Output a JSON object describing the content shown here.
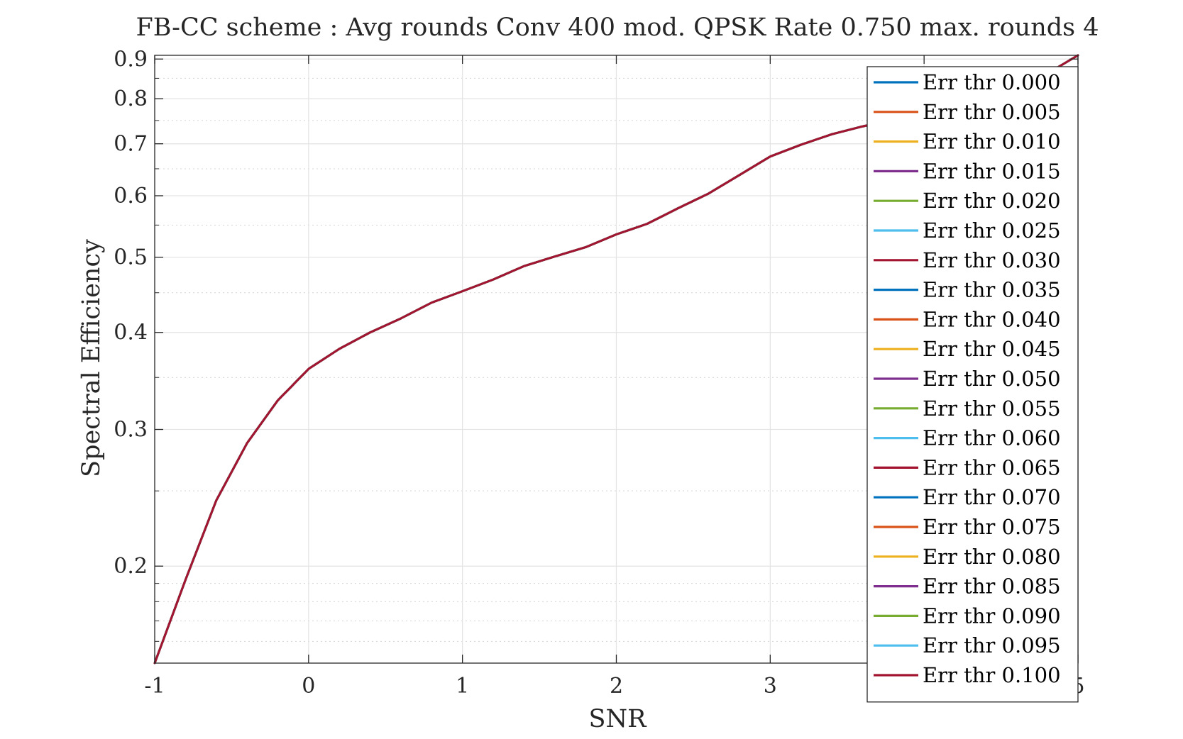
{
  "chart_data": {
    "type": "line",
    "title": "FB-CC scheme : Avg rounds Conv 400 mod. QPSK Rate 0.750 max. rounds 4",
    "xlabel": "SNR",
    "ylabel": "Spectral Efficiency",
    "xlim": [
      -1,
      5
    ],
    "ylim": [
      0.15,
      0.91
    ],
    "yscale": "log",
    "grid": true,
    "minor_grid": true,
    "legend_position": "top-right",
    "x_ticks": [
      -1,
      0,
      1,
      2,
      3,
      4,
      5
    ],
    "x_tick_labels": [
      "-1",
      "0",
      "1",
      "2",
      "3",
      "4",
      "5"
    ],
    "y_ticks": [
      0.2,
      0.3,
      0.4,
      0.5,
      0.6,
      0.7,
      0.8,
      0.9
    ],
    "y_tick_labels": [
      "0.2",
      "0.3",
      "0.4",
      "0.5",
      "0.6",
      "0.7",
      "0.8",
      "0.9"
    ],
    "y_minor_ticks": [
      0.15,
      0.16,
      0.17,
      0.18,
      0.19,
      0.25,
      0.35,
      0.45,
      0.55,
      0.65,
      0.75,
      0.85
    ],
    "x": [
      -1.0,
      -0.8,
      -0.6,
      -0.4,
      -0.2,
      0.0,
      0.2,
      0.4,
      0.6,
      0.8,
      1.0,
      1.2,
      1.4,
      1.6,
      1.8,
      2.0,
      2.2,
      2.4,
      2.6,
      2.8,
      3.0,
      3.2,
      3.4,
      3.6,
      3.8,
      4.0,
      4.2,
      4.4,
      4.6,
      4.8,
      5.0
    ],
    "series": [
      {
        "name": "Err thr 0.000",
        "color": "#0072BD",
        "values": [
          0.15,
          0.192,
          0.243,
          0.288,
          0.327,
          0.359,
          0.381,
          0.4,
          0.417,
          0.437,
          0.452,
          0.468,
          0.487,
          0.501,
          0.515,
          0.535,
          0.552,
          0.578,
          0.604,
          0.638,
          0.674,
          0.698,
          0.72,
          0.737,
          0.752,
          0.768,
          0.784,
          0.802,
          0.828,
          0.862,
          0.91
        ]
      },
      {
        "name": "Err thr 0.005",
        "color": "#D95319",
        "values": [
          0.15,
          0.192,
          0.243,
          0.288,
          0.327,
          0.359,
          0.381,
          0.4,
          0.417,
          0.437,
          0.452,
          0.468,
          0.487,
          0.501,
          0.515,
          0.535,
          0.552,
          0.578,
          0.604,
          0.638,
          0.674,
          0.698,
          0.72,
          0.737,
          0.752,
          0.768,
          0.784,
          0.802,
          0.828,
          0.862,
          0.91
        ]
      },
      {
        "name": "Err thr 0.010",
        "color": "#EDB120",
        "values": [
          0.15,
          0.192,
          0.243,
          0.288,
          0.327,
          0.359,
          0.381,
          0.4,
          0.417,
          0.437,
          0.452,
          0.468,
          0.487,
          0.501,
          0.515,
          0.535,
          0.552,
          0.578,
          0.604,
          0.638,
          0.674,
          0.698,
          0.72,
          0.737,
          0.752,
          0.768,
          0.784,
          0.802,
          0.828,
          0.862,
          0.91
        ]
      },
      {
        "name": "Err thr 0.015",
        "color": "#7E2F8E",
        "values": [
          0.15,
          0.192,
          0.243,
          0.288,
          0.327,
          0.359,
          0.381,
          0.4,
          0.417,
          0.437,
          0.452,
          0.468,
          0.487,
          0.501,
          0.515,
          0.535,
          0.552,
          0.578,
          0.604,
          0.638,
          0.674,
          0.698,
          0.72,
          0.737,
          0.752,
          0.768,
          0.784,
          0.802,
          0.828,
          0.862,
          0.91
        ]
      },
      {
        "name": "Err thr 0.020",
        "color": "#77AC30",
        "values": [
          0.15,
          0.192,
          0.243,
          0.288,
          0.327,
          0.359,
          0.381,
          0.4,
          0.417,
          0.437,
          0.452,
          0.468,
          0.487,
          0.501,
          0.515,
          0.535,
          0.552,
          0.578,
          0.604,
          0.638,
          0.674,
          0.698,
          0.72,
          0.737,
          0.752,
          0.768,
          0.784,
          0.802,
          0.828,
          0.862,
          0.91
        ]
      },
      {
        "name": "Err thr 0.025",
        "color": "#4DBEEE",
        "values": [
          0.15,
          0.192,
          0.243,
          0.288,
          0.327,
          0.359,
          0.381,
          0.4,
          0.417,
          0.437,
          0.452,
          0.468,
          0.487,
          0.501,
          0.515,
          0.535,
          0.552,
          0.578,
          0.604,
          0.638,
          0.674,
          0.698,
          0.72,
          0.737,
          0.752,
          0.768,
          0.784,
          0.802,
          0.828,
          0.862,
          0.91
        ]
      },
      {
        "name": "Err thr 0.030",
        "color": "#A2142F",
        "values": [
          0.15,
          0.192,
          0.243,
          0.288,
          0.327,
          0.359,
          0.381,
          0.4,
          0.417,
          0.437,
          0.452,
          0.468,
          0.487,
          0.501,
          0.515,
          0.535,
          0.552,
          0.578,
          0.604,
          0.638,
          0.674,
          0.698,
          0.72,
          0.737,
          0.752,
          0.768,
          0.784,
          0.802,
          0.828,
          0.862,
          0.91
        ]
      },
      {
        "name": "Err thr 0.035",
        "color": "#0072BD",
        "values": [
          0.15,
          0.192,
          0.243,
          0.288,
          0.327,
          0.359,
          0.381,
          0.4,
          0.417,
          0.437,
          0.452,
          0.468,
          0.487,
          0.501,
          0.515,
          0.535,
          0.552,
          0.578,
          0.604,
          0.638,
          0.674,
          0.698,
          0.72,
          0.737,
          0.752,
          0.768,
          0.784,
          0.802,
          0.828,
          0.862,
          0.91
        ]
      },
      {
        "name": "Err thr 0.040",
        "color": "#D95319",
        "values": [
          0.15,
          0.192,
          0.243,
          0.288,
          0.327,
          0.359,
          0.381,
          0.4,
          0.417,
          0.437,
          0.452,
          0.468,
          0.487,
          0.501,
          0.515,
          0.535,
          0.552,
          0.578,
          0.604,
          0.638,
          0.674,
          0.698,
          0.72,
          0.737,
          0.752,
          0.768,
          0.784,
          0.802,
          0.828,
          0.862,
          0.91
        ]
      },
      {
        "name": "Err thr 0.045",
        "color": "#EDB120",
        "values": [
          0.15,
          0.192,
          0.243,
          0.288,
          0.327,
          0.359,
          0.381,
          0.4,
          0.417,
          0.437,
          0.452,
          0.468,
          0.487,
          0.501,
          0.515,
          0.535,
          0.552,
          0.578,
          0.604,
          0.638,
          0.674,
          0.698,
          0.72,
          0.737,
          0.752,
          0.768,
          0.784,
          0.802,
          0.828,
          0.862,
          0.91
        ]
      },
      {
        "name": "Err thr 0.050",
        "color": "#7E2F8E",
        "values": [
          0.15,
          0.192,
          0.243,
          0.288,
          0.327,
          0.359,
          0.381,
          0.4,
          0.417,
          0.437,
          0.452,
          0.468,
          0.487,
          0.501,
          0.515,
          0.535,
          0.552,
          0.578,
          0.604,
          0.638,
          0.674,
          0.698,
          0.72,
          0.737,
          0.752,
          0.768,
          0.784,
          0.802,
          0.828,
          0.862,
          0.91
        ]
      },
      {
        "name": "Err thr 0.055",
        "color": "#77AC30",
        "values": [
          0.15,
          0.192,
          0.243,
          0.288,
          0.327,
          0.359,
          0.381,
          0.4,
          0.417,
          0.437,
          0.452,
          0.468,
          0.487,
          0.501,
          0.515,
          0.535,
          0.552,
          0.578,
          0.604,
          0.638,
          0.674,
          0.698,
          0.72,
          0.737,
          0.752,
          0.768,
          0.784,
          0.802,
          0.828,
          0.862,
          0.91
        ]
      },
      {
        "name": "Err thr 0.060",
        "color": "#4DBEEE",
        "values": [
          0.15,
          0.192,
          0.243,
          0.288,
          0.327,
          0.359,
          0.381,
          0.4,
          0.417,
          0.437,
          0.452,
          0.468,
          0.487,
          0.501,
          0.515,
          0.535,
          0.552,
          0.578,
          0.604,
          0.638,
          0.674,
          0.698,
          0.72,
          0.737,
          0.752,
          0.768,
          0.784,
          0.802,
          0.828,
          0.862,
          0.91
        ]
      },
      {
        "name": "Err thr 0.065",
        "color": "#A2142F",
        "values": [
          0.15,
          0.192,
          0.243,
          0.288,
          0.327,
          0.359,
          0.381,
          0.4,
          0.417,
          0.437,
          0.452,
          0.468,
          0.487,
          0.501,
          0.515,
          0.535,
          0.552,
          0.578,
          0.604,
          0.638,
          0.674,
          0.698,
          0.72,
          0.737,
          0.752,
          0.768,
          0.784,
          0.802,
          0.828,
          0.862,
          0.91
        ]
      },
      {
        "name": "Err thr 0.070",
        "color": "#0072BD",
        "values": [
          0.15,
          0.192,
          0.243,
          0.288,
          0.327,
          0.359,
          0.381,
          0.4,
          0.417,
          0.437,
          0.452,
          0.468,
          0.487,
          0.501,
          0.515,
          0.535,
          0.552,
          0.578,
          0.604,
          0.638,
          0.674,
          0.698,
          0.72,
          0.737,
          0.752,
          0.768,
          0.784,
          0.802,
          0.828,
          0.862,
          0.91
        ]
      },
      {
        "name": "Err thr 0.075",
        "color": "#D95319",
        "values": [
          0.15,
          0.192,
          0.243,
          0.288,
          0.327,
          0.359,
          0.381,
          0.4,
          0.417,
          0.437,
          0.452,
          0.468,
          0.487,
          0.501,
          0.515,
          0.535,
          0.552,
          0.578,
          0.604,
          0.638,
          0.674,
          0.698,
          0.72,
          0.737,
          0.752,
          0.768,
          0.784,
          0.802,
          0.828,
          0.862,
          0.91
        ]
      },
      {
        "name": "Err thr 0.080",
        "color": "#EDB120",
        "values": [
          0.15,
          0.192,
          0.243,
          0.288,
          0.327,
          0.359,
          0.381,
          0.4,
          0.417,
          0.437,
          0.452,
          0.468,
          0.487,
          0.501,
          0.515,
          0.535,
          0.552,
          0.578,
          0.604,
          0.638,
          0.674,
          0.698,
          0.72,
          0.737,
          0.752,
          0.768,
          0.784,
          0.802,
          0.828,
          0.862,
          0.91
        ]
      },
      {
        "name": "Err thr 0.085",
        "color": "#7E2F8E",
        "values": [
          0.15,
          0.192,
          0.243,
          0.288,
          0.327,
          0.359,
          0.381,
          0.4,
          0.417,
          0.437,
          0.452,
          0.468,
          0.487,
          0.501,
          0.515,
          0.535,
          0.552,
          0.578,
          0.604,
          0.638,
          0.674,
          0.698,
          0.72,
          0.737,
          0.752,
          0.768,
          0.784,
          0.802,
          0.828,
          0.862,
          0.91
        ]
      },
      {
        "name": "Err thr 0.090",
        "color": "#77AC30",
        "values": [
          0.15,
          0.192,
          0.243,
          0.288,
          0.327,
          0.359,
          0.381,
          0.4,
          0.417,
          0.437,
          0.452,
          0.468,
          0.487,
          0.501,
          0.515,
          0.535,
          0.552,
          0.578,
          0.604,
          0.638,
          0.674,
          0.698,
          0.72,
          0.737,
          0.752,
          0.768,
          0.784,
          0.802,
          0.828,
          0.862,
          0.91
        ]
      },
      {
        "name": "Err thr 0.095",
        "color": "#4DBEEE",
        "values": [
          0.15,
          0.192,
          0.243,
          0.288,
          0.327,
          0.359,
          0.381,
          0.4,
          0.417,
          0.437,
          0.452,
          0.468,
          0.487,
          0.501,
          0.515,
          0.535,
          0.552,
          0.578,
          0.604,
          0.638,
          0.674,
          0.698,
          0.72,
          0.737,
          0.752,
          0.768,
          0.784,
          0.802,
          0.828,
          0.862,
          0.91
        ]
      },
      {
        "name": "Err thr 0.100",
        "color": "#A2142F",
        "values": [
          0.15,
          0.192,
          0.243,
          0.288,
          0.327,
          0.359,
          0.381,
          0.4,
          0.417,
          0.437,
          0.452,
          0.468,
          0.487,
          0.501,
          0.515,
          0.535,
          0.552,
          0.578,
          0.604,
          0.638,
          0.674,
          0.698,
          0.72,
          0.737,
          0.752,
          0.768,
          0.784,
          0.802,
          0.828,
          0.862,
          0.91
        ]
      }
    ]
  }
}
